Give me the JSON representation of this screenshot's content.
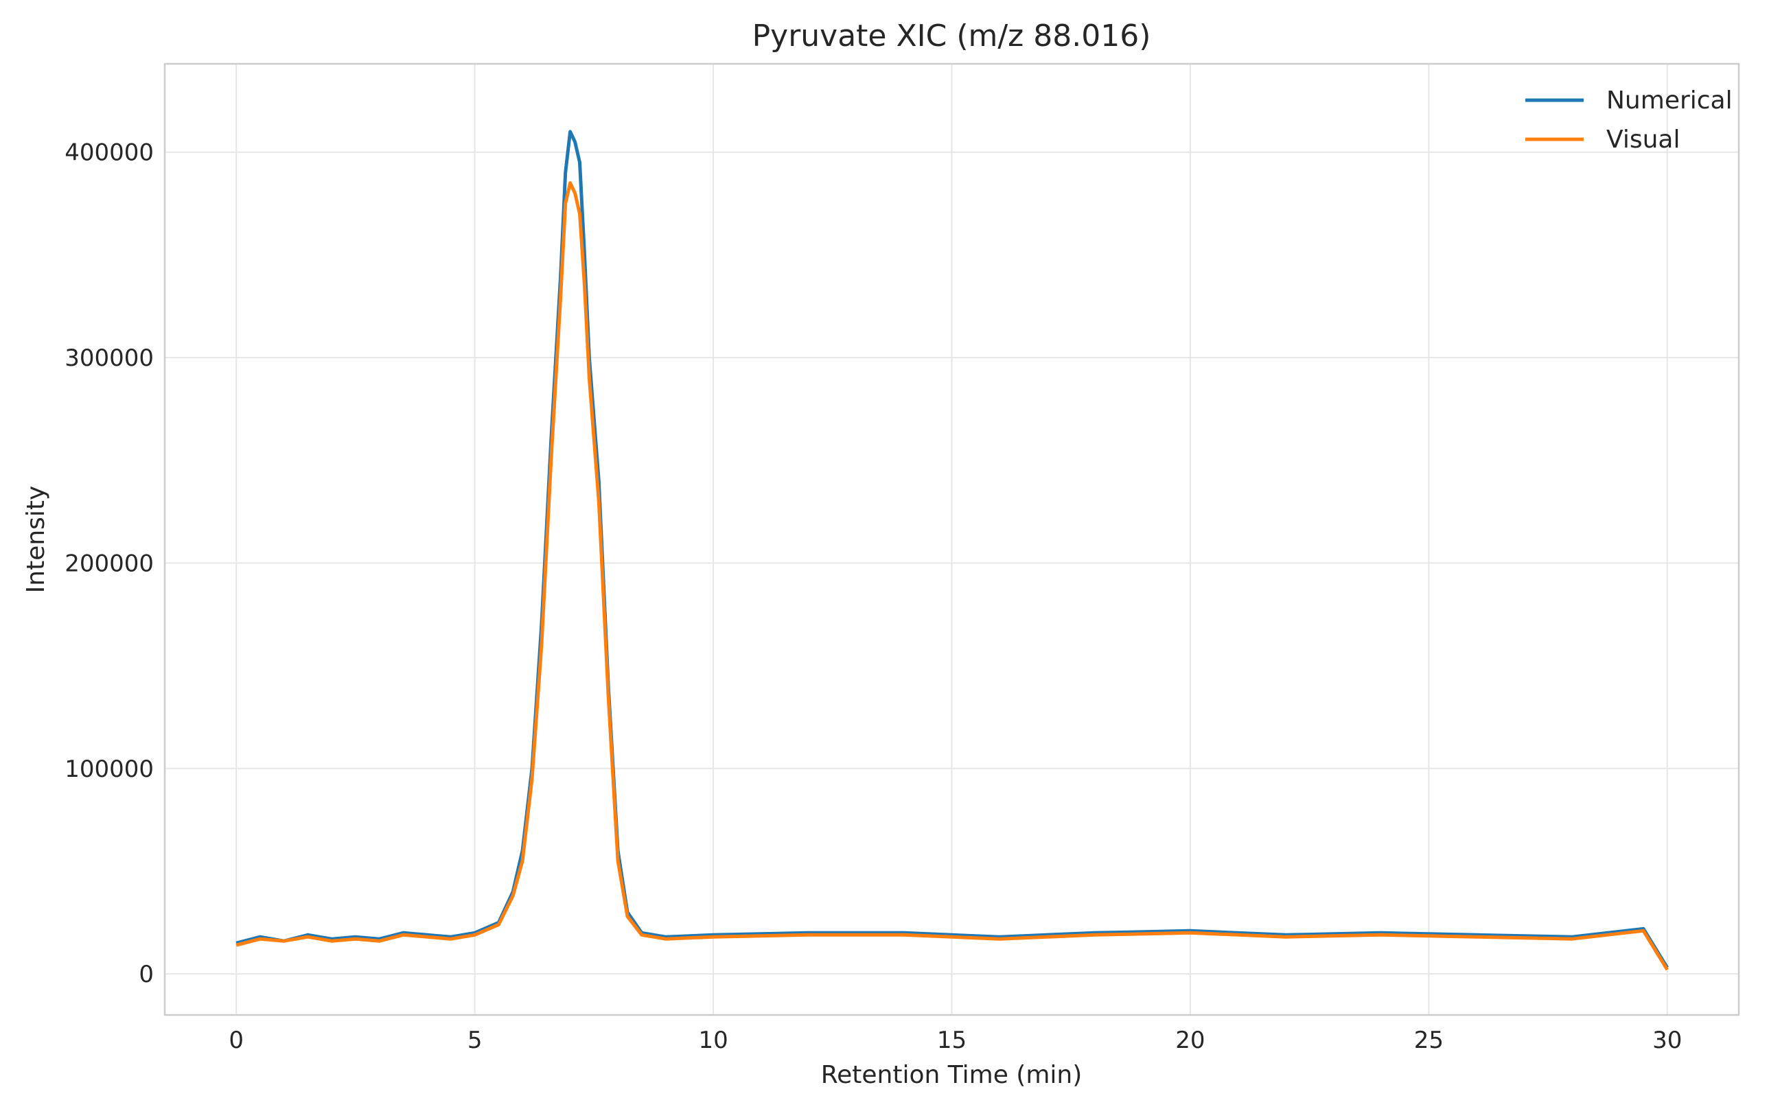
{
  "chart_data": {
    "type": "line",
    "title": "Pyruvate XIC (m/z 88.016)",
    "xlabel": "Retention Time (min)",
    "ylabel": "Intensity",
    "xlim": [
      -1.5,
      31.5
    ],
    "ylim": [
      -20000,
      443000
    ],
    "xticks": [
      0,
      5,
      10,
      15,
      20,
      25,
      30
    ],
    "yticks": [
      0,
      100000,
      200000,
      300000,
      400000
    ],
    "grid": true,
    "legend_position": "top-right",
    "colors": {
      "Numerical": "#1f77b4",
      "Visual": "#ff7f0e"
    },
    "series": [
      {
        "name": "Numerical",
        "x": [
          0,
          0.5,
          1,
          1.5,
          2,
          2.5,
          3,
          3.5,
          4,
          4.5,
          5,
          5.5,
          5.8,
          6,
          6.2,
          6.4,
          6.6,
          6.8,
          6.9,
          7,
          7.1,
          7.2,
          7.3,
          7.4,
          7.6,
          7.8,
          8,
          8.2,
          8.5,
          9,
          10,
          12,
          14,
          16,
          18,
          20,
          22,
          24,
          26,
          28,
          29.5,
          30
        ],
        "y": [
          15000,
          18000,
          16000,
          19000,
          17000,
          18000,
          17000,
          20000,
          19000,
          18000,
          20000,
          25000,
          40000,
          60000,
          100000,
          170000,
          260000,
          340000,
          390000,
          410000,
          405000,
          395000,
          350000,
          300000,
          240000,
          140000,
          60000,
          30000,
          20000,
          18000,
          19000,
          20000,
          20000,
          18000,
          20000,
          21000,
          19000,
          20000,
          19000,
          18000,
          22000,
          3000
        ]
      },
      {
        "name": "Visual",
        "x": [
          0,
          0.5,
          1,
          1.5,
          2,
          2.5,
          3,
          3.5,
          4,
          4.5,
          5,
          5.5,
          5.8,
          6,
          6.2,
          6.4,
          6.6,
          6.8,
          6.9,
          7,
          7.1,
          7.2,
          7.3,
          7.4,
          7.6,
          7.8,
          8,
          8.2,
          8.5,
          9,
          10,
          12,
          14,
          16,
          18,
          20,
          22,
          24,
          26,
          28,
          29.5,
          30
        ],
        "y": [
          14000,
          17000,
          16000,
          18000,
          16000,
          17000,
          16000,
          19000,
          18000,
          17000,
          19000,
          24000,
          38000,
          55000,
          95000,
          160000,
          250000,
          330000,
          375000,
          385000,
          380000,
          370000,
          335000,
          290000,
          230000,
          135000,
          55000,
          28000,
          19000,
          17000,
          18000,
          19000,
          19000,
          17000,
          19000,
          20000,
          18000,
          19000,
          18000,
          17000,
          21000,
          2000
        ]
      }
    ]
  }
}
